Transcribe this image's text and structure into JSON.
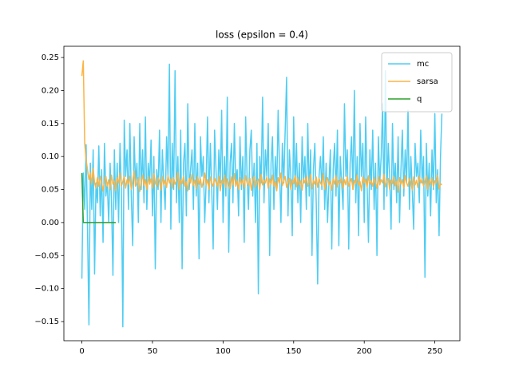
{
  "chart_data": {
    "type": "line",
    "title": "loss (epsilon = 0.4)",
    "xlim": [
      -12.75,
      267.75
    ],
    "xticks": [
      0,
      50,
      100,
      150,
      200,
      250
    ],
    "ylim": [
      -0.179,
      0.267
    ],
    "yticks": [
      {
        "value": -0.15,
        "label": "−0.15"
      },
      {
        "value": -0.1,
        "label": "−0.10"
      },
      {
        "value": -0.05,
        "label": "−0.05"
      },
      {
        "value": 0,
        "label": "0.00"
      },
      0.05,
      {
        "value": 0.1,
        "label": "0.10"
      },
      0.15,
      {
        "value": 0.2,
        "label": "0.20"
      },
      0.25
    ],
    "legend": "upper right",
    "x": [
      0,
      1,
      2,
      3,
      4,
      5,
      6,
      7,
      8,
      9,
      10,
      11,
      12,
      13,
      14,
      15,
      16,
      17,
      18,
      19,
      20,
      21,
      22,
      23,
      24,
      25,
      26,
      27,
      28,
      29,
      30,
      31,
      32,
      33,
      34,
      35,
      36,
      37,
      38,
      39,
      40,
      41,
      42,
      43,
      44,
      45,
      46,
      47,
      48,
      49,
      50,
      51,
      52,
      53,
      54,
      55,
      56,
      57,
      58,
      59,
      60,
      61,
      62,
      63,
      64,
      65,
      66,
      67,
      68,
      69,
      70,
      71,
      72,
      73,
      74,
      75,
      76,
      77,
      78,
      79,
      80,
      81,
      82,
      83,
      84,
      85,
      86,
      87,
      88,
      89,
      90,
      91,
      92,
      93,
      94,
      95,
      96,
      97,
      98,
      99,
      100,
      101,
      102,
      103,
      104,
      105,
      106,
      107,
      108,
      109,
      110,
      111,
      112,
      113,
      114,
      115,
      116,
      117,
      118,
      119,
      120,
      121,
      122,
      123,
      124,
      125,
      126,
      127,
      128,
      129,
      130,
      131,
      132,
      133,
      134,
      135,
      136,
      137,
      138,
      139,
      140,
      141,
      142,
      143,
      144,
      145,
      146,
      147,
      148,
      149,
      150,
      151,
      152,
      153,
      154,
      155,
      156,
      157,
      158,
      159,
      160,
      161,
      162,
      163,
      164,
      165,
      166,
      167,
      168,
      169,
      170,
      171,
      172,
      173,
      174,
      175,
      176,
      177,
      178,
      179,
      180,
      181,
      182,
      183,
      184,
      185,
      186,
      187,
      188,
      189,
      190,
      191,
      192,
      193,
      194,
      195,
      196,
      197,
      198,
      199,
      200,
      201,
      202,
      203,
      204,
      205,
      206,
      207,
      208,
      209,
      210,
      211,
      212,
      213,
      214,
      215,
      216,
      217,
      218,
      219,
      220,
      221,
      222,
      223,
      224,
      225,
      226,
      227,
      228,
      229,
      230,
      231,
      232,
      233,
      234,
      235,
      236,
      237,
      238,
      239,
      240,
      241,
      242,
      243,
      244,
      245,
      246,
      247,
      248,
      249,
      250,
      251,
      252,
      253,
      254,
      255
    ],
    "series": [
      {
        "name": "mc",
        "color": "#4fcdf3",
        "values": [
          -0.085,
          0.075,
          0.02,
          0.118,
          -0.01,
          -0.155,
          0.09,
          0.02,
          0.11,
          -0.078,
          0.06,
          0.03,
          0.116,
          0.01,
          0.08,
          -0.03,
          0.12,
          0.04,
          0.06,
          0.0,
          0.09,
          0.03,
          -0.08,
          0.11,
          0.02,
          0.09,
          0.0,
          0.12,
          0.05,
          -0.158,
          0.155,
          0.07,
          0.11,
          0.02,
          0.15,
          0.04,
          -0.035,
          0.13,
          0.06,
          0.09,
          0.0,
          0.15,
          0.05,
          0.11,
          0.03,
          0.16,
          0.02,
          0.09,
          0.06,
          0.125,
          0.01,
          0.1,
          -0.07,
          0.08,
          0.05,
          0.14,
          0.0,
          0.11,
          0.06,
          0.02,
          0.13,
          0.07,
          0.24,
          -0.01,
          0.12,
          0.05,
          0.23,
          0.03,
          0.1,
          0.0,
          0.14,
          -0.07,
          0.09,
          0.12,
          0.01,
          0.18,
          0.05,
          0.08,
          0.11,
          0.02,
          0.15,
          0.04,
          0.09,
          -0.055,
          0.13,
          0.07,
          0.1,
          0.0,
          0.06,
          0.16,
          0.03,
          0.12,
          0.05,
          -0.04,
          0.14,
          0.08,
          0.02,
          0.11,
          0.06,
          0.17,
          0.0,
          0.1,
          0.04,
          0.19,
          -0.045,
          0.09,
          0.12,
          0.03,
          0.15,
          0.06,
          0.08,
          0.01,
          0.13,
          0.05,
          0.1,
          -0.03,
          0.16,
          0.07,
          0.02,
          0.11,
          0.14,
          0.04,
          0.09,
          0.0,
          0.12,
          -0.108,
          0.1,
          0.06,
          0.19,
          0.03,
          0.11,
          0.07,
          0.15,
          -0.05,
          0.09,
          0.13,
          0.02,
          0.1,
          0.05,
          0.17,
          0.08,
          0.0,
          0.12,
          0.06,
          0.14,
          0.22,
          0.01,
          0.11,
          0.07,
          -0.02,
          0.16,
          0.05,
          0.12,
          0.03,
          0.09,
          0.0,
          0.13,
          0.06,
          0.1,
          0.02,
          0.15,
          0.04,
          0.11,
          -0.05,
          0.08,
          0.12,
          0.03,
          -0.093,
          0.07,
          0.1,
          0.05,
          0.13,
          0.02,
          0.09,
          0.0,
          0.06,
          0.11,
          -0.04,
          0.08,
          0.12,
          0.04,
          0.14,
          -0.035,
          0.1,
          0.06,
          0.02,
          0.18,
          0.07,
          0.11,
          -0.04,
          0.09,
          0.13,
          0.05,
          0.2,
          0.03,
          0.1,
          -0.02,
          0.15,
          0.07,
          0.12,
          0.0,
          0.16,
          0.06,
          -0.03,
          0.11,
          0.05,
          0.14,
          0.02,
          0.09,
          -0.05,
          0.13,
          0.06,
          0.1,
          0.18,
          0.02,
          0.23,
          0.04,
          0.12,
          0.07,
          -0.01,
          0.15,
          0.05,
          0.09,
          0.03,
          0.13,
          0.0,
          0.08,
          0.14,
          0.04,
          0.11,
          0.06,
          0.17,
          0.02,
          0.1,
          0.05,
          -0.01,
          0.12,
          0.07,
          0.09,
          0.03,
          0.14,
          0.06,
          0.1,
          -0.083,
          0.12,
          0.04,
          0.09,
          0.01,
          0.11,
          0.05,
          0.165,
          0.03,
          0.08,
          -0.02,
          0.1,
          0.165
        ]
      },
      {
        "name": "sarsa",
        "color": "#fbb444",
        "values": [
          0.222,
          0.245,
          0.12,
          0.095,
          0.08,
          0.065,
          0.075,
          0.058,
          0.082,
          0.06,
          0.052,
          0.068,
          0.055,
          0.07,
          0.06,
          0.048,
          0.062,
          0.07,
          0.055,
          0.065,
          0.05,
          0.072,
          0.058,
          0.063,
          0.048,
          0.068,
          0.06,
          0.075,
          0.055,
          0.062,
          0.07,
          0.052,
          0.065,
          0.058,
          0.07,
          0.05,
          0.063,
          0.078,
          0.055,
          0.06,
          0.068,
          0.047,
          0.062,
          0.072,
          0.056,
          0.065,
          0.05,
          0.07,
          0.058,
          0.066,
          0.052,
          0.074,
          0.06,
          0.055,
          0.068,
          0.062,
          0.049,
          0.07,
          0.057,
          0.064,
          0.053,
          0.071,
          0.06,
          0.066,
          0.052,
          0.068,
          0.058,
          0.063,
          0.076,
          0.05,
          0.065,
          0.059,
          0.07,
          0.055,
          0.062,
          0.048,
          0.067,
          0.06,
          0.073,
          0.056,
          0.064,
          0.051,
          0.07,
          0.058,
          0.066,
          0.053,
          0.062,
          0.075,
          0.057,
          0.065,
          0.05,
          0.069,
          0.06,
          0.055,
          0.067,
          0.061,
          0.055,
          0.07,
          0.048,
          0.064,
          0.059,
          0.072,
          0.053,
          0.066,
          0.06,
          0.051,
          0.069,
          0.057,
          0.074,
          0.055,
          0.063,
          0.05,
          0.068,
          0.058,
          0.065,
          0.052,
          0.071,
          0.06,
          0.056,
          0.067,
          0.049,
          0.063,
          0.07,
          0.054,
          0.061,
          0.066,
          0.05,
          0.073,
          0.057,
          0.064,
          0.06,
          0.069,
          0.052,
          0.066,
          0.058,
          0.072,
          0.055,
          0.062,
          0.048,
          0.068,
          0.06,
          0.075,
          0.056,
          0.063,
          0.07,
          0.053,
          0.061,
          0.067,
          0.05,
          0.065,
          0.059,
          0.071,
          0.054,
          0.068,
          0.057,
          0.063,
          0.049,
          0.066,
          0.06,
          0.07,
          0.055,
          0.062,
          0.073,
          0.051,
          0.064,
          0.058,
          0.069,
          0.053,
          0.067,
          0.06,
          0.056,
          0.074,
          0.05,
          0.063,
          0.068,
          0.057,
          0.062,
          0.049,
          0.066,
          0.058,
          0.071,
          0.054,
          0.063,
          0.06,
          0.068,
          0.052,
          0.065,
          0.057,
          0.07,
          0.055,
          0.061,
          0.067,
          0.05,
          0.064,
          0.059,
          0.072,
          0.056,
          0.062,
          0.048,
          0.069,
          0.06,
          0.066,
          0.053,
          0.071,
          0.058,
          0.063,
          0.055,
          0.068,
          0.061,
          0.052,
          0.07,
          0.057,
          0.065,
          0.06,
          0.073,
          0.054,
          0.062,
          0.067,
          0.05,
          0.064,
          0.059,
          0.07,
          0.056,
          0.063,
          0.046,
          0.068,
          0.058,
          0.065,
          0.052,
          0.071,
          0.06,
          0.055,
          0.067,
          0.062,
          0.049,
          0.069,
          0.057,
          0.064,
          0.053,
          0.07,
          0.06,
          0.066,
          0.055,
          0.062,
          0.071,
          0.05,
          0.065,
          0.058,
          0.068,
          0.054,
          0.063,
          0.06,
          0.072,
          0.051,
          0.059,
          0.057
        ]
      },
      {
        "name": "q",
        "color": "#2ca02c",
        "x": [
          0,
          1,
          2,
          3,
          4,
          5,
          6,
          7,
          8,
          9,
          10,
          11,
          12,
          13,
          14,
          15,
          16,
          17,
          18,
          19,
          20,
          21,
          22,
          23,
          24
        ],
        "values": [
          0.075,
          0,
          0,
          0,
          0,
          0,
          0,
          0,
          0,
          0,
          0,
          0,
          0,
          0,
          0,
          0,
          0,
          0,
          0,
          0,
          0,
          0,
          0,
          0,
          0
        ]
      }
    ]
  }
}
